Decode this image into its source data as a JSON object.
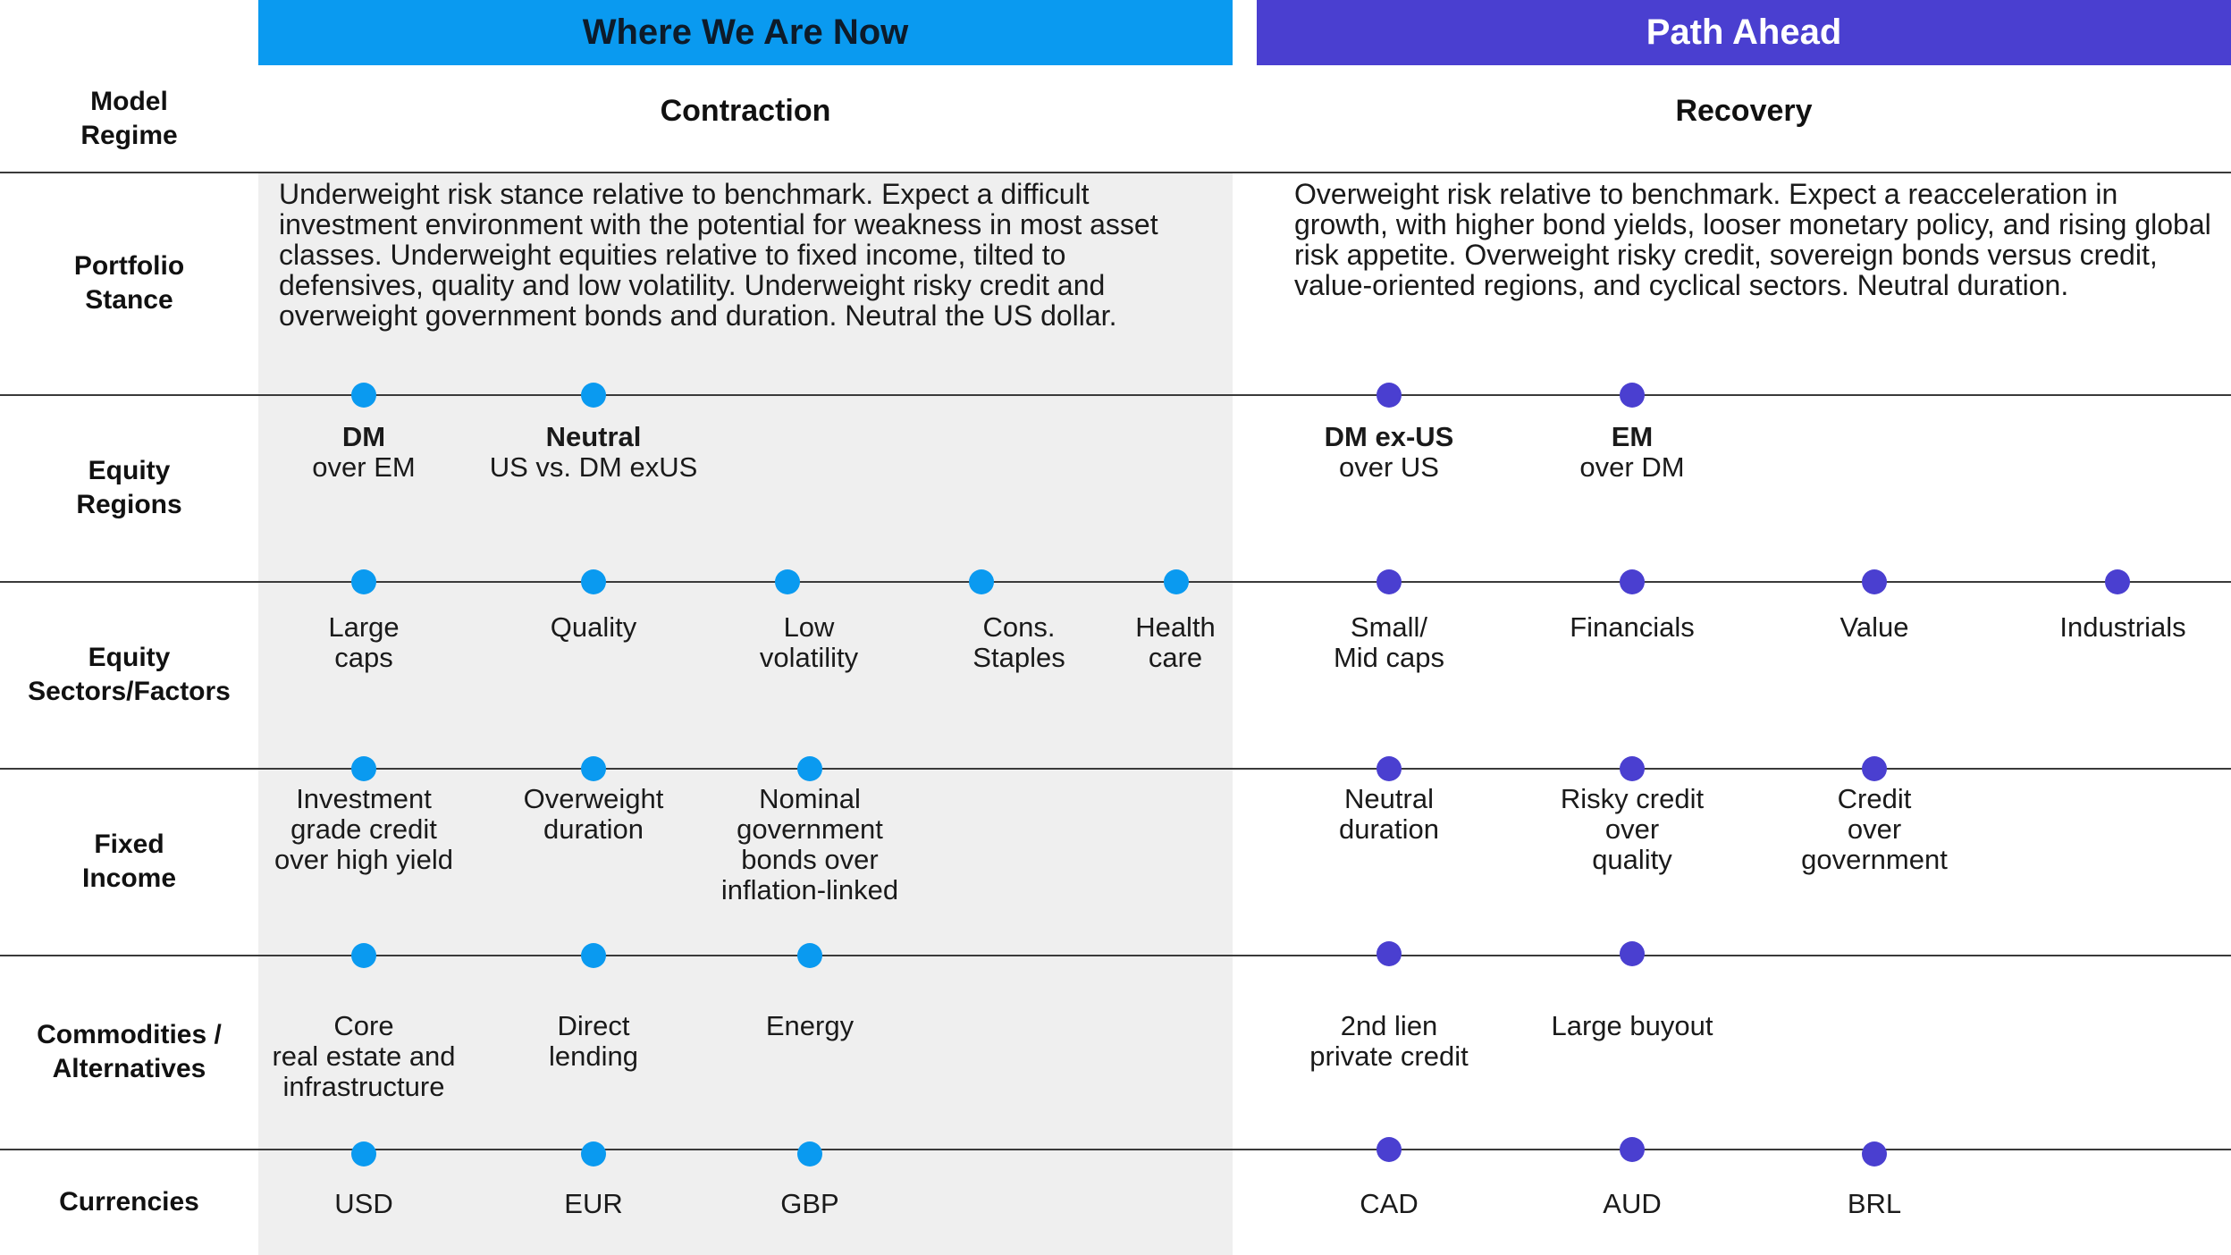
{
  "headers": {
    "now": "Where We Are Now",
    "ahead": "Path Ahead"
  },
  "colors": {
    "now": "#0a9af0",
    "ahead": "#4a3fd0",
    "shade": "#efefef"
  },
  "model_regime": {
    "label": "Model\nRegime",
    "now": "Contraction",
    "ahead": "Recovery"
  },
  "portfolio_stance": {
    "label": "Portfolio\nStance",
    "now": "Underweight risk stance relative to benchmark. Expect a difficult investment environment with the potential for weakness in most asset classes. Underweight equities relative to fixed income, tilted to defensives, quality and low volatility. Underweight risky credit and overweight government bonds and duration. Neutral the US dollar.",
    "ahead": "Overweight risk relative to benchmark. Expect a reacceleration in growth, with higher bond yields, looser monetary policy, and rising global risk appetite. Overweight risky credit, sovereign bonds versus credit, value-oriented regions, and cyclical sectors. Neutral duration."
  },
  "equity_regions": {
    "label": "Equity\nRegions",
    "now": [
      {
        "bold": "DM",
        "text": "over EM"
      },
      {
        "bold": "Neutral",
        "text": "US vs. DM exUS"
      }
    ],
    "ahead": [
      {
        "bold": "DM ex-US",
        "text": "over US"
      },
      {
        "bold": "EM",
        "text": "over DM"
      }
    ]
  },
  "equity_sectors": {
    "label": "Equity\nSectors/Factors",
    "now": [
      "Large\ncaps",
      "Quality",
      "Low\nvolatility",
      "Cons.\nStaples",
      "Health\ncare"
    ],
    "ahead": [
      "Small/\nMid caps",
      "Financials",
      "Value",
      "Industrials"
    ]
  },
  "fixed_income": {
    "label": "Fixed\nIncome",
    "now": [
      "Investment\ngrade credit\nover high yield",
      "Overweight\nduration",
      "Nominal\ngovernment\nbonds over\ninflation-linked"
    ],
    "ahead": [
      "Neutral\nduration",
      "Risky credit\nover\nquality",
      "Credit\nover\ngovernment"
    ]
  },
  "commodities": {
    "label": "Commodities /\nAlternatives",
    "now": [
      "Core\nreal estate and\ninfrastructure",
      "Direct\nlending",
      "Energy"
    ],
    "ahead": [
      "2nd lien\nprivate credit",
      "Large buyout"
    ]
  },
  "currencies": {
    "label": "Currencies",
    "now": [
      "USD",
      "EUR",
      "GBP"
    ],
    "ahead": [
      "CAD",
      "AUD",
      "BRL"
    ]
  }
}
